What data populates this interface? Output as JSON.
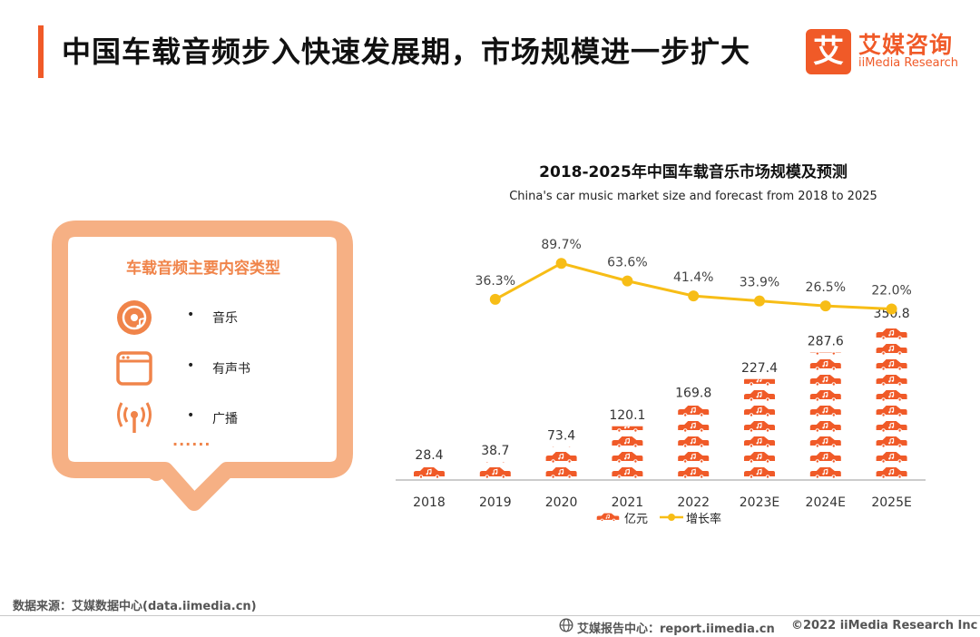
{
  "header": {
    "title": "中国车载音频步入快速发展期，市场规模进一步扩大",
    "accent_color": "#f05a28"
  },
  "logo": {
    "mark": "艾",
    "name_cn": "艾媒咨询",
    "name_en": "iiMedia Research",
    "color": "#f05a28"
  },
  "content_types": {
    "title": "车载音频主要内容类型",
    "items": [
      {
        "icon": "music-disc-icon",
        "bullet": "•",
        "label": "音乐"
      },
      {
        "icon": "audiobook-icon",
        "bullet": "•",
        "label": "有声书"
      },
      {
        "icon": "radio-broadcast-icon",
        "bullet": "•",
        "label": "广播"
      }
    ],
    "more": "······",
    "color": "#f6b084"
  },
  "chart_data": {
    "type": "bar",
    "title": "2018-2025年中国车载音乐市场规模及预测",
    "subtitle": "China's car music market size and forecast from 2018 to 2025",
    "categories": [
      "2018",
      "2019",
      "2020",
      "2021",
      "2022",
      "2023E",
      "2024E",
      "2025E"
    ],
    "series": [
      {
        "name": "亿元",
        "type": "bar",
        "values": [
          28.4,
          38.7,
          73.4,
          120.1,
          169.8,
          227.4,
          287.6,
          350.8
        ],
        "labels": [
          "28.4",
          "38.7",
          "73.4",
          "120.1",
          "169.8",
          "227.4",
          "287.6",
          "350.8"
        ],
        "color": "#f05a28"
      },
      {
        "name": "增长率",
        "type": "line",
        "values": [
          null,
          36.3,
          89.7,
          63.6,
          41.4,
          33.9,
          26.5,
          22.0
        ],
        "labels": [
          "",
          "36.3%",
          "89.7%",
          "63.6%",
          "41.4%",
          "33.9%",
          "26.5%",
          "22.0%"
        ],
        "color": "#f7bd16"
      }
    ],
    "ylim": [
      0,
      350.8
    ],
    "growth_ylim": [
      0,
      100
    ],
    "grid": false,
    "legend": "bottom"
  },
  "footer": {
    "source": "数据来源：艾媒数据中心(data.iimedia.cn)",
    "report": "艾媒报告中心：report.iimedia.cn",
    "copyright": "©2022  iiMedia Research  Inc"
  }
}
